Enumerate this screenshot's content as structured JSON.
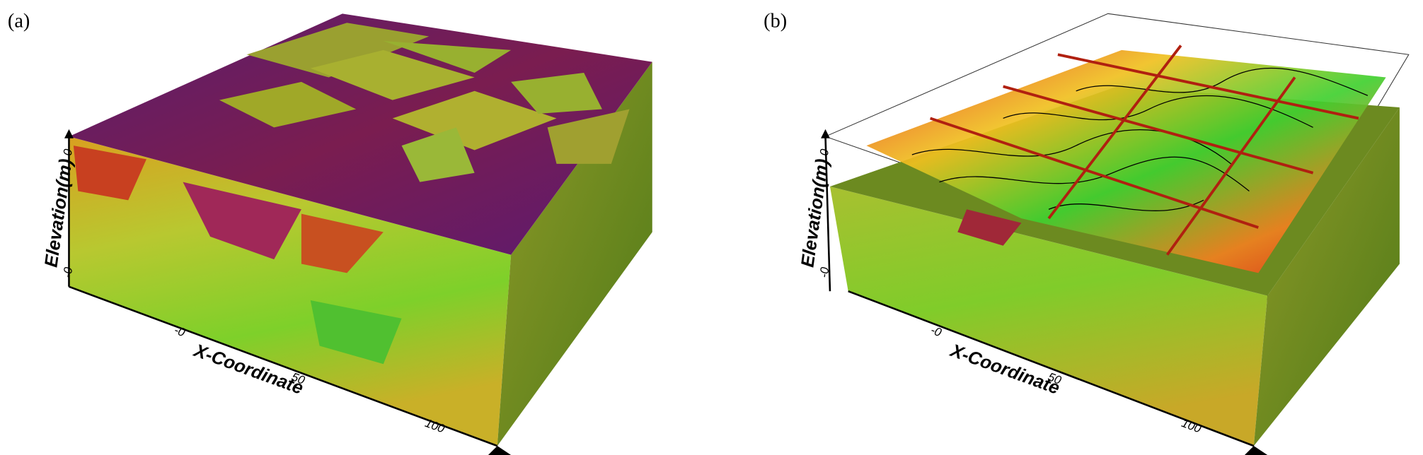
{
  "panels": [
    {
      "label": "(a)",
      "y_axis_title": "Elevation(m)",
      "y_ticks": [
        "0",
        "-0"
      ],
      "x_axis_title": "X-Coordinate",
      "x_ticks": [
        "-0",
        "50",
        "100"
      ]
    },
    {
      "label": "(b)",
      "y_axis_title": "Elevation(m)",
      "y_ticks": [
        "0",
        "-0"
      ],
      "x_axis_title": "X-Coordinate",
      "x_ticks": [
        "-0",
        "50",
        "100"
      ]
    }
  ]
}
